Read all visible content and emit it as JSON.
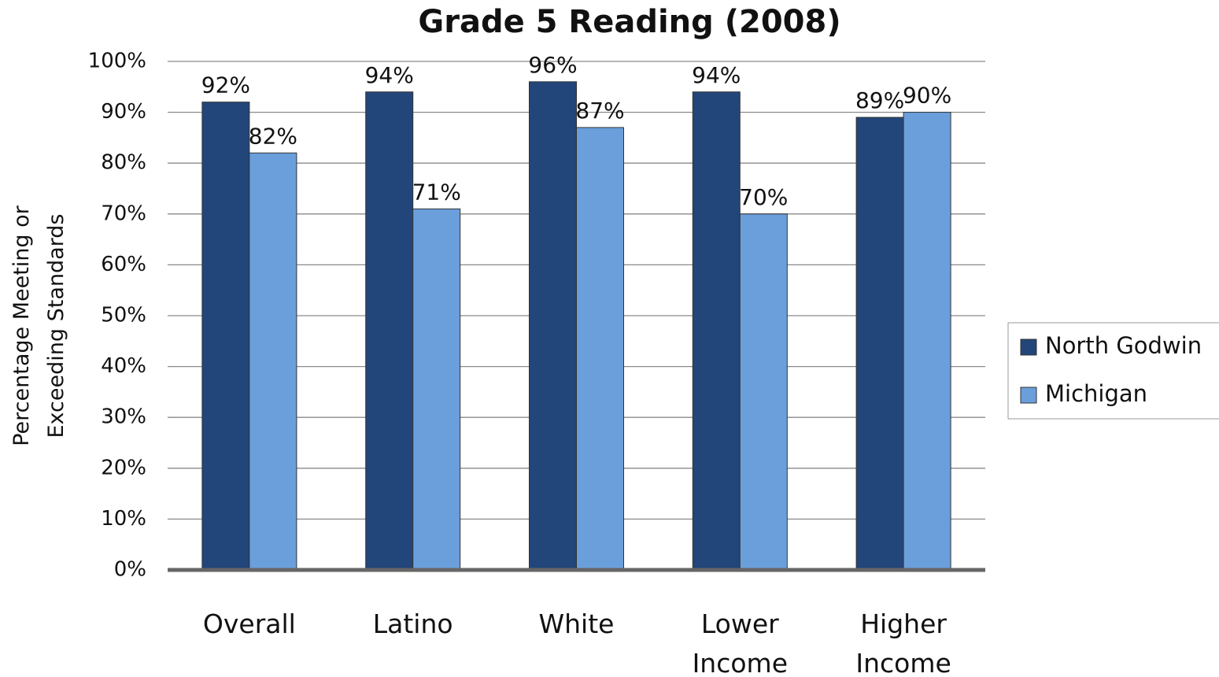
{
  "chart_data": {
    "type": "bar",
    "title": "Grade 5 Reading (2008)",
    "y_label": "Percentage Meeting or Exceeding Standards",
    "categories": [
      "Overall",
      "Latino",
      "White",
      "Lower Income",
      "Higher Income"
    ],
    "series": [
      {
        "name": "North Godwin",
        "color": "#22467a",
        "values": [
          92,
          94,
          96,
          94,
          89
        ],
        "value_labels": [
          "92%",
          "94%",
          "96%",
          "94%",
          "89%"
        ]
      },
      {
        "name": "Michigan",
        "color": "#6a9fdc",
        "values": [
          82,
          71,
          87,
          70,
          90
        ],
        "value_labels": [
          "82%",
          "71%",
          "87%",
          "70%",
          "90%"
        ]
      }
    ],
    "ylim": [
      0,
      100
    ],
    "yticks": [
      {
        "value": 0,
        "label": "0%"
      },
      {
        "value": 10,
        "label": "10%"
      },
      {
        "value": 20,
        "label": "20%"
      },
      {
        "value": 30,
        "label": "30%"
      },
      {
        "value": 40,
        "label": "40%"
      },
      {
        "value": 50,
        "label": "50%"
      },
      {
        "value": 60,
        "label": "60%"
      },
      {
        "value": 70,
        "label": "70%"
      },
      {
        "value": 80,
        "label": "80%"
      },
      {
        "value": 90,
        "label": "90%"
      },
      {
        "value": 100,
        "label": "100%"
      }
    ],
    "grid": true,
    "legend": "right"
  }
}
